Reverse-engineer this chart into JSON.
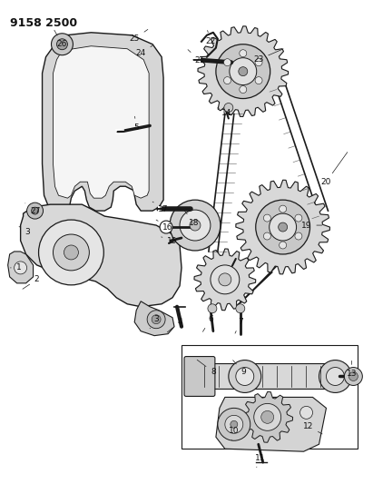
{
  "title": "9158 2500",
  "bg_color": "#ffffff",
  "lc": "#1a1a1a",
  "fig_width": 4.11,
  "fig_height": 5.33,
  "dpi": 100
}
